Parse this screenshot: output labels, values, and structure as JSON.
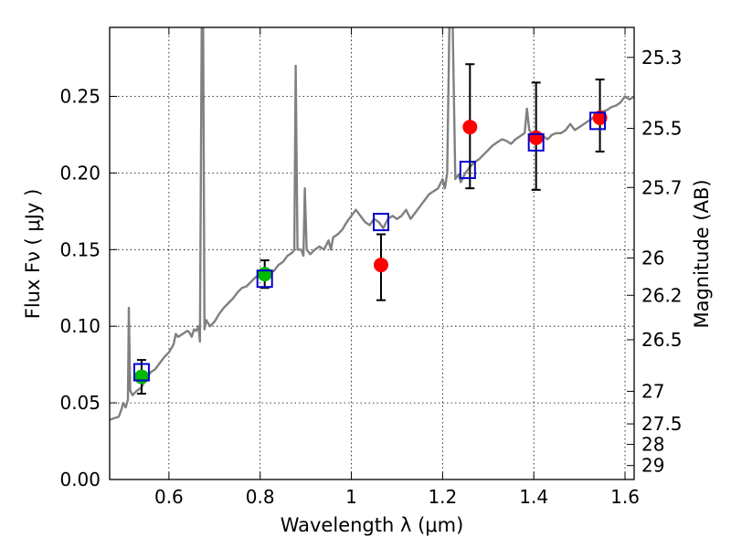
{
  "chart_data": {
    "type": "scatter",
    "xlabel": "Wavelength  λ (μm)",
    "ylabel": "Flux  Fν  ( μJy )",
    "ylabel_right": "Magnitude (AB)",
    "xlim": [
      0.47,
      1.62
    ],
    "ylim": [
      0.0,
      0.295
    ],
    "x_ticks": [
      0.6,
      0.8,
      1.0,
      1.2,
      1.4,
      1.6
    ],
    "x_tick_labels": [
      "0.6",
      "0.8",
      "1",
      "1.2",
      "1.4",
      "1.6"
    ],
    "y_ticks": [
      0.0,
      0.05,
      0.1,
      0.15,
      0.2,
      0.25
    ],
    "y_tick_labels": [
      "0.00",
      "0.05",
      "0.10",
      "0.15",
      "0.20",
      "0.25"
    ],
    "mag_ticks": [
      25.3,
      25.5,
      25.7,
      26,
      26.2,
      26.5,
      27,
      27.5,
      28,
      29
    ],
    "mag_tick_labels": [
      "25.3",
      "25.5",
      "25.7",
      "26",
      "26.2",
      "26.5",
      "27",
      "27.5",
      "28",
      "29"
    ],
    "grid": true,
    "series": [
      {
        "name": "model spectrum",
        "kind": "line",
        "color": "#808080",
        "points": [
          [
            0.47,
            0.039
          ],
          [
            0.48,
            0.04
          ],
          [
            0.49,
            0.041
          ],
          [
            0.495,
            0.045
          ],
          [
            0.5,
            0.05
          ],
          [
            0.505,
            0.047
          ],
          [
            0.51,
            0.052
          ],
          [
            0.512,
            0.112
          ],
          [
            0.515,
            0.058
          ],
          [
            0.52,
            0.055
          ],
          [
            0.53,
            0.058
          ],
          [
            0.54,
            0.06
          ],
          [
            0.55,
            0.066
          ],
          [
            0.56,
            0.07
          ],
          [
            0.57,
            0.072
          ],
          [
            0.58,
            0.076
          ],
          [
            0.59,
            0.08
          ],
          [
            0.6,
            0.083
          ],
          [
            0.61,
            0.088
          ],
          [
            0.615,
            0.095
          ],
          [
            0.62,
            0.093
          ],
          [
            0.63,
            0.095
          ],
          [
            0.64,
            0.097
          ],
          [
            0.645,
            0.096
          ],
          [
            0.65,
            0.093
          ],
          [
            0.655,
            0.098
          ],
          [
            0.66,
            0.097
          ],
          [
            0.665,
            0.1
          ],
          [
            0.668,
            0.09
          ],
          [
            0.672,
            0.3
          ],
          [
            0.675,
            0.3
          ],
          [
            0.678,
            0.098
          ],
          [
            0.682,
            0.104
          ],
          [
            0.69,
            0.1
          ],
          [
            0.7,
            0.103
          ],
          [
            0.71,
            0.108
          ],
          [
            0.72,
            0.112
          ],
          [
            0.73,
            0.115
          ],
          [
            0.74,
            0.118
          ],
          [
            0.75,
            0.122
          ],
          [
            0.76,
            0.125
          ],
          [
            0.77,
            0.126
          ],
          [
            0.78,
            0.129
          ],
          [
            0.79,
            0.132
          ],
          [
            0.8,
            0.134
          ],
          [
            0.81,
            0.134
          ],
          [
            0.82,
            0.135
          ],
          [
            0.83,
            0.136
          ],
          [
            0.84,
            0.14
          ],
          [
            0.85,
            0.142
          ],
          [
            0.86,
            0.146
          ],
          [
            0.87,
            0.148
          ],
          [
            0.875,
            0.15
          ],
          [
            0.878,
            0.27
          ],
          [
            0.882,
            0.15
          ],
          [
            0.89,
            0.15
          ],
          [
            0.895,
            0.146
          ],
          [
            0.898,
            0.19
          ],
          [
            0.902,
            0.15
          ],
          [
            0.91,
            0.147
          ],
          [
            0.92,
            0.15
          ],
          [
            0.93,
            0.152
          ],
          [
            0.94,
            0.15
          ],
          [
            0.95,
            0.156
          ],
          [
            0.955,
            0.15
          ],
          [
            0.96,
            0.158
          ],
          [
            0.97,
            0.16
          ],
          [
            0.98,
            0.163
          ],
          [
            0.99,
            0.168
          ],
          [
            1.0,
            0.172
          ],
          [
            1.01,
            0.176
          ],
          [
            1.02,
            0.172
          ],
          [
            1.03,
            0.168
          ],
          [
            1.04,
            0.166
          ],
          [
            1.05,
            0.17
          ],
          [
            1.06,
            0.168
          ],
          [
            1.07,
            0.164
          ],
          [
            1.08,
            0.17
          ],
          [
            1.09,
            0.172
          ],
          [
            1.1,
            0.17
          ],
          [
            1.11,
            0.172
          ],
          [
            1.12,
            0.176
          ],
          [
            1.13,
            0.17
          ],
          [
            1.14,
            0.174
          ],
          [
            1.15,
            0.178
          ],
          [
            1.16,
            0.182
          ],
          [
            1.17,
            0.186
          ],
          [
            1.18,
            0.188
          ],
          [
            1.19,
            0.19
          ],
          [
            1.2,
            0.196
          ],
          [
            1.205,
            0.19
          ],
          [
            1.21,
            0.2
          ],
          [
            1.215,
            0.3
          ],
          [
            1.222,
            0.3
          ],
          [
            1.228,
            0.196
          ],
          [
            1.235,
            0.199
          ],
          [
            1.24,
            0.194
          ],
          [
            1.25,
            0.2
          ],
          [
            1.26,
            0.204
          ],
          [
            1.27,
            0.207
          ],
          [
            1.28,
            0.209
          ],
          [
            1.29,
            0.212
          ],
          [
            1.3,
            0.215
          ],
          [
            1.31,
            0.218
          ],
          [
            1.32,
            0.22
          ],
          [
            1.33,
            0.222
          ],
          [
            1.34,
            0.221
          ],
          [
            1.35,
            0.219
          ],
          [
            1.36,
            0.222
          ],
          [
            1.37,
            0.224
          ],
          [
            1.38,
            0.226
          ],
          [
            1.385,
            0.242
          ],
          [
            1.39,
            0.228
          ],
          [
            1.4,
            0.224
          ],
          [
            1.41,
            0.222
          ],
          [
            1.42,
            0.224
          ],
          [
            1.43,
            0.222
          ],
          [
            1.44,
            0.225
          ],
          [
            1.45,
            0.226
          ],
          [
            1.46,
            0.226
          ],
          [
            1.47,
            0.228
          ],
          [
            1.48,
            0.232
          ],
          [
            1.49,
            0.228
          ],
          [
            1.5,
            0.23
          ],
          [
            1.51,
            0.232
          ],
          [
            1.52,
            0.234
          ],
          [
            1.53,
            0.236
          ],
          [
            1.54,
            0.238
          ],
          [
            1.55,
            0.24
          ],
          [
            1.56,
            0.241
          ],
          [
            1.57,
            0.243
          ],
          [
            1.58,
            0.244
          ],
          [
            1.59,
            0.246
          ],
          [
            1.6,
            0.25
          ],
          [
            1.61,
            0.248
          ],
          [
            1.62,
            0.25
          ]
        ]
      },
      {
        "name": "green photometry",
        "kind": "points",
        "marker": "circle",
        "color": "#00bb00",
        "points": [
          {
            "x": 0.54,
            "y": 0.067,
            "yerr_low": 0.011,
            "yerr_high": 0.011
          },
          {
            "x": 0.81,
            "y": 0.134,
            "yerr_low": 0.009,
            "yerr_high": 0.009
          }
        ]
      },
      {
        "name": "red photometry",
        "kind": "points",
        "marker": "circle",
        "color": "#ff0000",
        "points": [
          {
            "x": 1.065,
            "y": 0.14,
            "yerr_low": 0.023,
            "yerr_high": 0.02
          },
          {
            "x": 1.26,
            "y": 0.23,
            "yerr_low": 0.04,
            "yerr_high": 0.041
          },
          {
            "x": 1.405,
            "y": 0.223,
            "yerr_low": 0.034,
            "yerr_high": 0.036
          },
          {
            "x": 1.545,
            "y": 0.236,
            "yerr_low": 0.022,
            "yerr_high": 0.025
          }
        ]
      },
      {
        "name": "model fluxes",
        "kind": "points",
        "marker": "open-square",
        "color": "#0000cc",
        "points": [
          {
            "x": 0.54,
            "y": 0.07
          },
          {
            "x": 0.81,
            "y": 0.131
          },
          {
            "x": 1.065,
            "y": 0.168
          },
          {
            "x": 1.255,
            "y": 0.202
          },
          {
            "x": 1.405,
            "y": 0.22
          },
          {
            "x": 1.54,
            "y": 0.234
          }
        ]
      }
    ]
  }
}
